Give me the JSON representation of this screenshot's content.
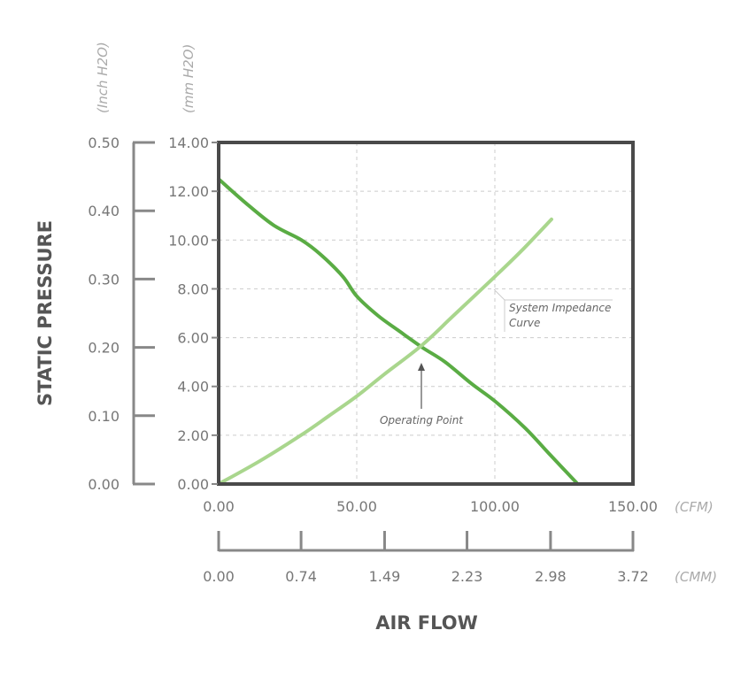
{
  "chart_data": {
    "type": "line",
    "xlabel": "AIR FLOW",
    "ylabel": "STATIC PRESSURE",
    "x_unit": "(CFM)",
    "x2_unit": "(CMM)",
    "y_unit": "(mm H2O)",
    "y2_unit": "(Inch H2O)",
    "xlim": [
      0,
      150
    ],
    "ylim": [
      0,
      14
    ],
    "x_ticks": [
      "0.00",
      "50.00",
      "100.00",
      "150.00"
    ],
    "x_tick_values": [
      0,
      50,
      100,
      150
    ],
    "x2_ticks": [
      "0.00",
      "0.74",
      "1.49",
      "2.23",
      "2.98",
      "3.72"
    ],
    "x2_tick_values": [
      0,
      0.74,
      1.49,
      2.23,
      2.98,
      3.72
    ],
    "x2lim": [
      0,
      3.72
    ],
    "y_ticks": [
      "0.00",
      "2.00",
      "4.00",
      "6.00",
      "8.00",
      "10.00",
      "12.00",
      "14.00"
    ],
    "y_tick_values": [
      0,
      2,
      4,
      6,
      8,
      10,
      12,
      14
    ],
    "y2_ticks": [
      "0.00",
      "0.10",
      "0.20",
      "0.30",
      "0.40",
      "0.50"
    ],
    "y2_tick_values": [
      0,
      0.1,
      0.2,
      0.3,
      0.4,
      0.5
    ],
    "y2lim": [
      0,
      0.5
    ],
    "grid": true,
    "series": [
      {
        "color": "#5aac44",
        "x": [
          0,
          10,
          20,
          30,
          37,
          45,
          50,
          57.7,
          65,
          73.7,
          82,
          91.7,
          100,
          110.9,
          120,
          130
        ],
        "y": [
          12.5,
          11.5,
          10.6,
          10.0,
          9.4,
          8.5,
          7.7,
          6.9,
          6.3,
          5.6,
          5.0,
          4.1,
          3.4,
          2.3,
          1.2,
          0
        ]
      },
      {
        "name": "System Impedance Curve",
        "color": "#a9d68d",
        "x": [
          0,
          15,
          29.8,
          40,
          50,
          60,
          73.7,
          85,
          100,
          110,
          120.5
        ],
        "y": [
          0,
          0.95,
          2.0,
          2.8,
          3.6,
          4.5,
          5.7,
          6.9,
          8.5,
          9.6,
          10.85
        ]
      }
    ],
    "annotations": [
      {
        "text": "Operating Point",
        "x": 73.7,
        "y": 5.6
      },
      {
        "text_line1": "System Impedance",
        "text_line2": "Curve"
      }
    ]
  }
}
